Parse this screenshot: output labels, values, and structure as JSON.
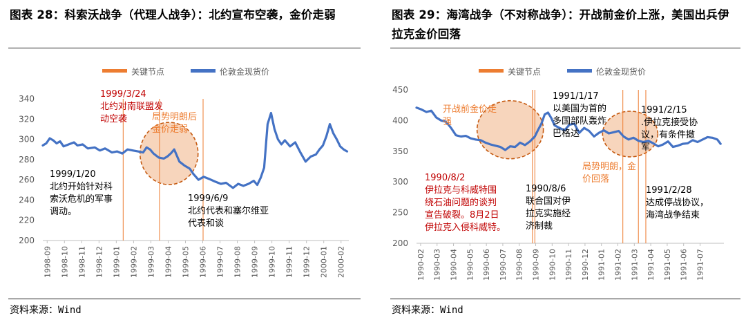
{
  "panels": [
    {
      "title": "图表 28：科索沃战争（代理人战争）：北约宣布空袭，金价走弱",
      "source": "资料来源：Wind"
    },
    {
      "title": "图表 29：海湾战争（不对称战争）：开战前金价上涨，美国出兵伊拉克金价回落",
      "source": "资料来源：Wind"
    }
  ],
  "chart_data": [
    {
      "type": "line",
      "title": "",
      "legend": {
        "position": "top",
        "entries": [
          "关键节点",
          "伦敦金现货价"
        ]
      },
      "colors": {
        "price": "#4472C4",
        "marker": "#ED7D31",
        "highlight_fill": "#F4C7A6",
        "highlight_stroke": "#C55A11",
        "annotation_red": "#C00000",
        "annotation_orange": "#ED7D31"
      },
      "ylim": [
        200,
        340
      ],
      "yticks": [
        200,
        220,
        240,
        260,
        280,
        300,
        320,
        340
      ],
      "x_range": [
        0,
        17.7
      ],
      "xticks": [
        "1998-09",
        "1998-10",
        "1998-11",
        "1998-12",
        "1999-01",
        "1999-02",
        "1999-03",
        "1999-04",
        "1999-05",
        "1999-06",
        "1999-07",
        "1999-08",
        "1999-09",
        "1999-10",
        "1999-11",
        "1999-12",
        "2000-01",
        "2000-02"
      ],
      "series": [
        {
          "name": "伦敦金现货价",
          "x": [
            0,
            0.2,
            0.4,
            0.6,
            0.8,
            1.0,
            1.2,
            1.5,
            1.8,
            2.0,
            2.3,
            2.6,
            3.0,
            3.3,
            3.6,
            4.0,
            4.3,
            4.6,
            4.9,
            5.2,
            5.5,
            5.8,
            6.0,
            6.2,
            6.4,
            6.7,
            7.0,
            7.2,
            7.4,
            7.6,
            7.9,
            8.2,
            8.5,
            8.7,
            9.0,
            9.3,
            9.6,
            10.0,
            10.3,
            10.6,
            11.0,
            11.3,
            11.6,
            11.9,
            12.2,
            12.4,
            12.6,
            12.8,
            13.0,
            13.2,
            13.4,
            13.6,
            13.8,
            14.0,
            14.3,
            14.6,
            14.9,
            15.2,
            15.5,
            15.8,
            16.0,
            16.2,
            16.4,
            16.6,
            16.8,
            17.0,
            17.2,
            17.4,
            17.6
          ],
          "values": [
            294,
            296,
            301,
            299,
            296,
            298,
            293,
            295,
            297,
            294,
            295,
            291,
            292,
            289,
            291,
            287,
            288,
            286,
            290,
            289,
            288,
            287,
            292,
            290,
            286,
            282,
            281,
            283,
            286,
            290,
            278,
            274,
            271,
            266,
            260,
            263,
            261,
            258,
            256,
            257,
            252,
            256,
            254,
            256,
            259,
            255,
            262,
            272,
            315,
            326,
            310,
            300,
            295,
            299,
            293,
            297,
            287,
            278,
            283,
            285,
            290,
            294,
            303,
            315,
            306,
            300,
            293,
            290,
            288
          ]
        }
      ],
      "markers": [
        {
          "label": "1999/1/20",
          "x": 4.65
        },
        {
          "label": "1999/3/24",
          "x": 6.75
        },
        {
          "label": "1999/6/9",
          "x": 9.27
        }
      ],
      "highlight_ellipse": {
        "x_center": 7.3,
        "y_center": 286
      },
      "annotations": [
        {
          "text": [
            "1999/3/24",
            "北约对南联盟发",
            "动空袭"
          ],
          "color": "red"
        },
        {
          "text": [
            "局势明朗后",
            "金价走弱"
          ],
          "color": "orange"
        },
        {
          "text": [
            "1999/1/20",
            "北约开始针对科",
            "索沃危机的军事",
            "调动。"
          ],
          "color": "black"
        },
        {
          "text": [
            "1999/6/9",
            "北约代表和塞尔维亚",
            "代表和谈"
          ],
          "color": "black"
        }
      ]
    },
    {
      "type": "line",
      "title": "",
      "legend": {
        "position": "top",
        "entries": [
          "关键节点",
          "伦敦金现货价"
        ]
      },
      "colors": {
        "price": "#4472C4",
        "marker": "#ED7D31",
        "highlight_fill": "#F4C7A6",
        "highlight_stroke": "#C55A11",
        "annotation_red": "#C00000",
        "annotation_orange": "#ED7D31"
      },
      "ylim": [
        200,
        450
      ],
      "yticks": [
        200,
        250,
        300,
        350,
        400,
        450
      ],
      "x_range": [
        0,
        18.7
      ],
      "xticks": [
        "1990-02",
        "1990-03",
        "1990-04",
        "1990-05",
        "1990-06",
        "1990-07",
        "1990-08",
        "1990-09",
        "1990-10",
        "1990-11",
        "1990-12",
        "1991-01",
        "1991-02",
        "1991-03",
        "1991-04",
        "1991-05",
        "1991-06",
        "1991-07"
      ],
      "series": [
        {
          "name": "伦敦金现货价",
          "x": [
            0,
            0.3,
            0.6,
            0.9,
            1.2,
            1.5,
            1.8,
            2.1,
            2.4,
            2.7,
            3.0,
            3.3,
            3.6,
            3.9,
            4.2,
            4.5,
            4.8,
            5.1,
            5.4,
            5.7,
            6.0,
            6.3,
            6.6,
            6.9,
            7.2,
            7.4,
            7.6,
            7.8,
            8.0,
            8.2,
            8.4,
            8.7,
            9.0,
            9.3,
            9.6,
            9.9,
            10.2,
            10.5,
            10.8,
            11.1,
            11.4,
            11.7,
            12.0,
            12.3,
            12.6,
            12.9,
            13.2,
            13.5,
            13.8,
            14.1,
            14.4,
            14.7,
            15.0,
            15.3,
            15.6,
            15.9,
            16.2,
            16.5,
            16.8,
            17.1,
            17.4,
            17.7,
            18.0,
            18.3,
            18.5
          ],
          "values": [
            421,
            418,
            414,
            416,
            405,
            400,
            398,
            388,
            376,
            374,
            375,
            371,
            369,
            368,
            364,
            361,
            359,
            357,
            352,
            358,
            357,
            364,
            360,
            366,
            374,
            385,
            395,
            410,
            413,
            404,
            392,
            388,
            384,
            393,
            395,
            380,
            388,
            383,
            374,
            380,
            384,
            379,
            381,
            383,
            374,
            369,
            372,
            367,
            365,
            367,
            363,
            358,
            361,
            366,
            357,
            359,
            362,
            363,
            368,
            365,
            369,
            373,
            372,
            369,
            362
          ]
        }
      ],
      "markers": [
        {
          "label": "1990/8/2",
          "x": 7.05
        },
        {
          "label": "1990/8/6",
          "x": 7.2
        },
        {
          "label": "1991/1/17",
          "x": 12.55
        },
        {
          "label": "1991/2/15",
          "x": 13.5
        },
        {
          "label": "1991/2/28",
          "x": 13.95
        }
      ],
      "highlight_ellipses": [
        {
          "x_center": 5.7,
          "y_center": 385
        },
        {
          "x_center": 13.0,
          "y_center": 378
        }
      ],
      "annotations": [
        {
          "text": [
            "开战前金价走",
            "强"
          ],
          "color": "orange"
        },
        {
          "text": [
            "1991/1/17",
            "以美国为首的",
            "多国部队轰炸",
            "巴格达"
          ],
          "color": "black"
        },
        {
          "text": [
            "1991/2/15",
            ".伊拉克接受协",
            "议，有条件撤",
            "军"
          ],
          "color": "black"
        },
        {
          "text": [
            "局势明朗，金",
            "价回落"
          ],
          "color": "orange"
        },
        {
          "text": [
            "1990/8/2",
            "伊拉克与科威特围",
            "绕石油问题的谈判",
            "宣告破裂。8月2日",
            "伊拉克入侵科威特。"
          ],
          "color": "red"
        },
        {
          "text": [
            "1990/8/6",
            "联合国对伊",
            "拉克实施经",
            "济制裁"
          ],
          "color": "black"
        },
        {
          "text": [
            "1991/2/28",
            "达成停战协议，",
            "海湾战争结束"
          ],
          "color": "black"
        }
      ]
    }
  ]
}
